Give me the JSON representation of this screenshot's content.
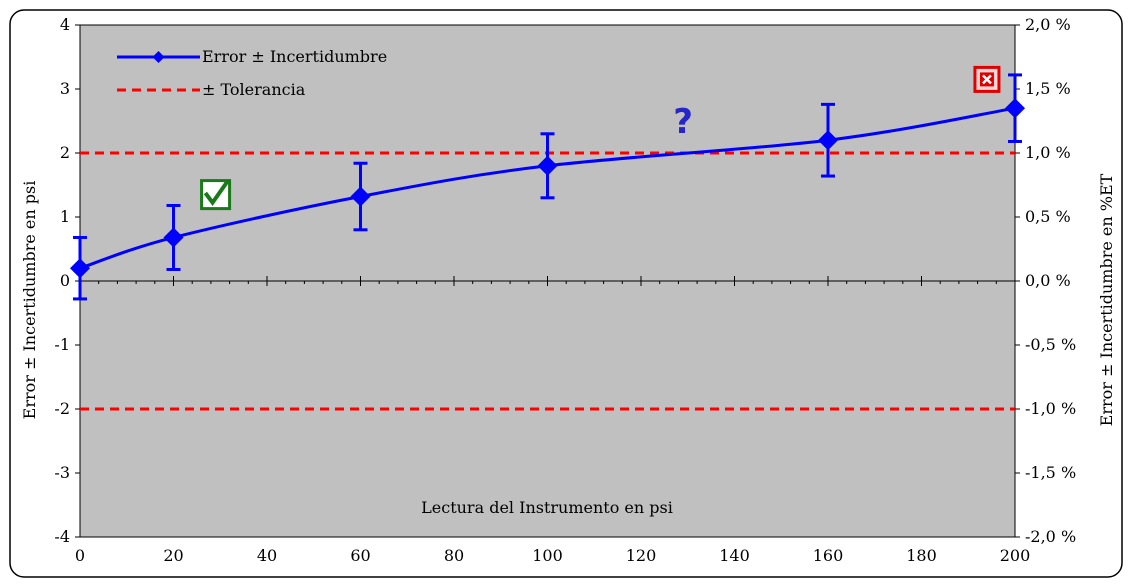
{
  "chart_data": {
    "type": "line",
    "xlabel": "Lectura del Instrumento en psi",
    "ylabel": "Error ± Incertidumbre en psi",
    "y2label": "Error ± Incertidumbre en %ET",
    "xlim": [
      0,
      200
    ],
    "ylim": [
      -4,
      4
    ],
    "y2lim": [
      -2.0,
      2.0
    ],
    "x_ticks": [
      "0",
      "20",
      "40",
      "60",
      "80",
      "100",
      "120",
      "140",
      "160",
      "180",
      "200"
    ],
    "y_ticks": [
      "-4",
      "-3",
      "-2",
      "-1",
      "0",
      "1",
      "2",
      "3",
      "4"
    ],
    "y2_ticks": [
      "-2,0 %",
      "-1,5 %",
      "-1,0 %",
      "-0,5 %",
      "0,0 %",
      "0,5 %",
      "1,0 %",
      "1,5 %",
      "2,0 %"
    ],
    "legend": {
      "position": "top-left"
    },
    "series": [
      {
        "name": "Error ± Incertidumbre",
        "type": "line",
        "color": "#0000ff",
        "x": [
          0,
          20,
          60,
          100,
          160,
          200
        ],
        "values": [
          0.2,
          0.68,
          1.32,
          1.8,
          2.2,
          2.7
        ],
        "error": [
          0.48,
          0.5,
          0.52,
          0.5,
          0.56,
          0.52
        ]
      },
      {
        "name": "± Tolerancia",
        "type": "line",
        "color": "#ff0000",
        "dashed": true,
        "x": [
          0,
          200
        ],
        "values_upper": [
          2,
          2
        ],
        "values_lower": [
          -2,
          -2
        ]
      }
    ],
    "annotations": [
      {
        "text": "?",
        "x": 129,
        "y": 2.5,
        "color": "#2525c8"
      },
      {
        "icon": "check-box-icon",
        "x": 29,
        "y": 1.35,
        "color": "#1a7a1a"
      },
      {
        "icon": "x-box-icon",
        "x": 194,
        "y": 3.15,
        "color": "#e00000"
      }
    ],
    "plot_background": "#c0c0c0"
  }
}
